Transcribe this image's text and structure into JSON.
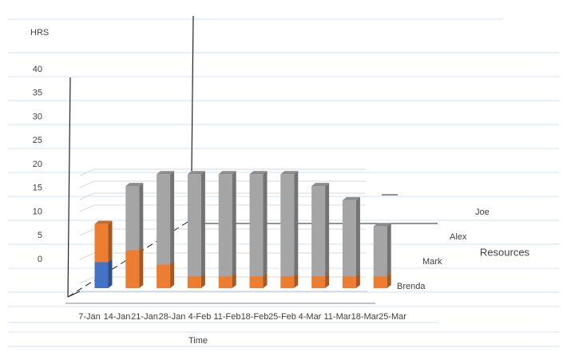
{
  "chart_data": {
    "type": "bar3d",
    "stacked": true,
    "y_label": "HRS",
    "x_label": "Time",
    "z_label": "Resources",
    "categories": [
      "7-Jan",
      "14-Jan",
      "21-Jan",
      "28-Jan",
      "4-Feb",
      "11-Feb",
      "18-Feb",
      "25-Feb",
      "4-Mar",
      "11-Mar",
      "18-Mar",
      "25-Mar"
    ],
    "series": [
      {
        "name": "Brenda",
        "color": "#4472c4",
        "values": [
          5.5,
          null,
          null,
          null,
          null,
          null,
          null,
          null,
          null,
          null,
          null,
          null
        ]
      },
      {
        "name": "Mark",
        "color": "#ed7d31",
        "values": [
          8,
          8,
          5,
          2.5,
          2.5,
          2.5,
          2.5,
          2.5,
          2.5,
          2.5,
          null,
          null
        ]
      },
      {
        "name": "Alex",
        "color": "#a5a5a5",
        "values": [
          null,
          13.5,
          19,
          21.5,
          21.5,
          21.5,
          21.5,
          19,
          16,
          10.5,
          null,
          null
        ]
      },
      {
        "name": "Joe",
        "color": "#ffc000",
        "values": [
          null,
          null,
          null,
          null,
          null,
          null,
          null,
          null,
          null,
          null,
          null,
          null
        ]
      }
    ],
    "ylim": [
      0,
      40
    ],
    "yticks": [
      0,
      5,
      10,
      15,
      20,
      25,
      30,
      35,
      40
    ]
  }
}
